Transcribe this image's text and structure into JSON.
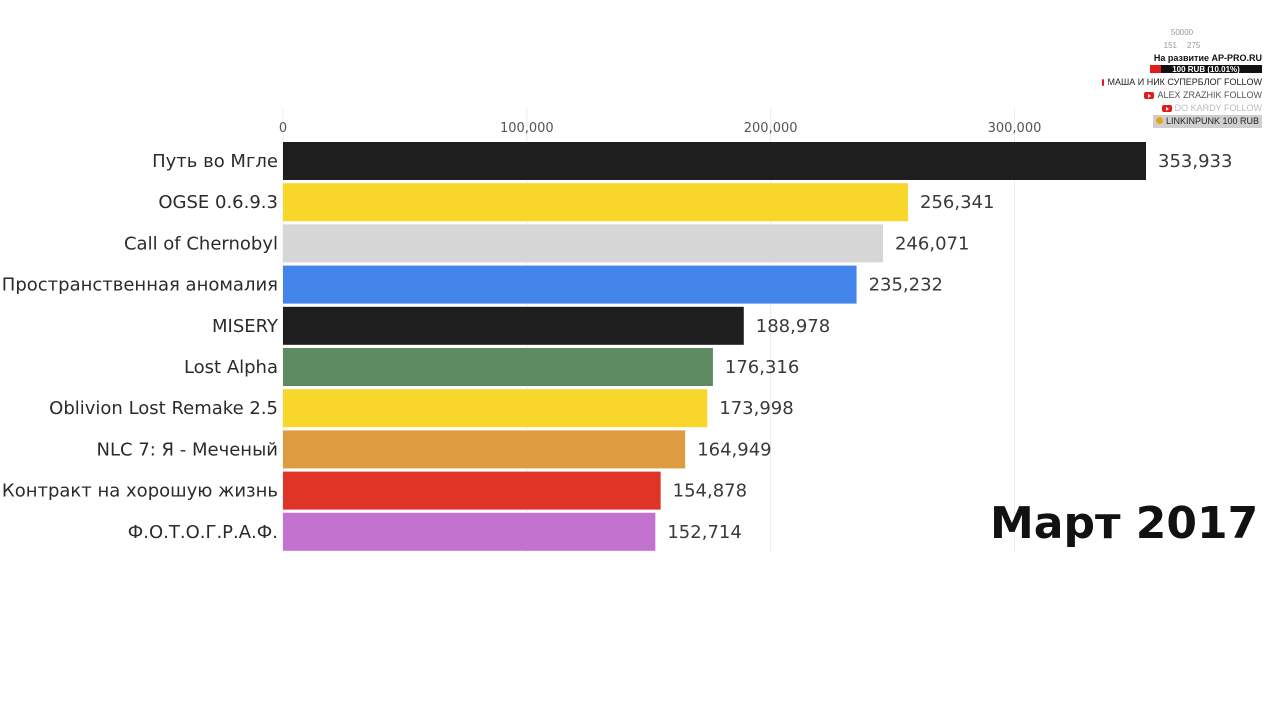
{
  "chart_data": {
    "type": "bar",
    "orientation": "horizontal",
    "title": "",
    "xlabel": "",
    "ylabel": "",
    "xlim": [
      0,
      353933
    ],
    "x_ticks": [
      0,
      100000,
      200000,
      300000
    ],
    "x_tick_labels": [
      "0",
      "100,000",
      "200,000",
      "300,000"
    ],
    "grid": true,
    "legend": "none",
    "categories": [
      "Путь во Мгле",
      "OGSE 0.6.9.3",
      "Call of Chernobyl",
      "Пространственная аномалия",
      "MISERY",
      "Lost Alpha",
      "Oblivion Lost Remake 2.5",
      "NLC 7: Я - Меченый",
      "Контракт на хорошую жизнь",
      "Ф.О.Т.О.Г.Р.А.Ф."
    ],
    "values": [
      353933,
      256341,
      246071,
      235232,
      188978,
      176316,
      173998,
      164949,
      154878,
      152714
    ],
    "value_labels": [
      "353,933",
      "256,341",
      "246,071",
      "235,232",
      "188,978",
      "176,316",
      "173,998",
      "164,949",
      "154,878",
      "152,714"
    ],
    "colors": [
      "#1e1e1e",
      "#f8d72a",
      "#d6d6d6",
      "#4385ea",
      "#1e1e1e",
      "#5d8a61",
      "#f8d72a",
      "#dd9c3f",
      "#e03427",
      "#c472d0"
    ]
  },
  "period_label": "Март 2017",
  "overlay": {
    "stat_top": "50000",
    "stat_left": "151",
    "stat_right": "275",
    "goal_text": "На развитие AP-PRO.RU",
    "goal_amount": "100 RUB (10.01%)",
    "goal_fraction": 0.1001,
    "follows": [
      {
        "text": "МАША И НИК СУПЕРБЛОГ  FOLLOW",
        "icon": "youtube-icon",
        "style": "dark"
      },
      {
        "text": "ALEX ZRAZHIK  FOLLOW",
        "icon": "youtube-icon",
        "style": "grey"
      },
      {
        "text": "DO KARDY  FOLLOW",
        "icon": "youtube-icon",
        "style": "faint"
      }
    ],
    "donation": "LINKINPUNK  100 RUB"
  }
}
